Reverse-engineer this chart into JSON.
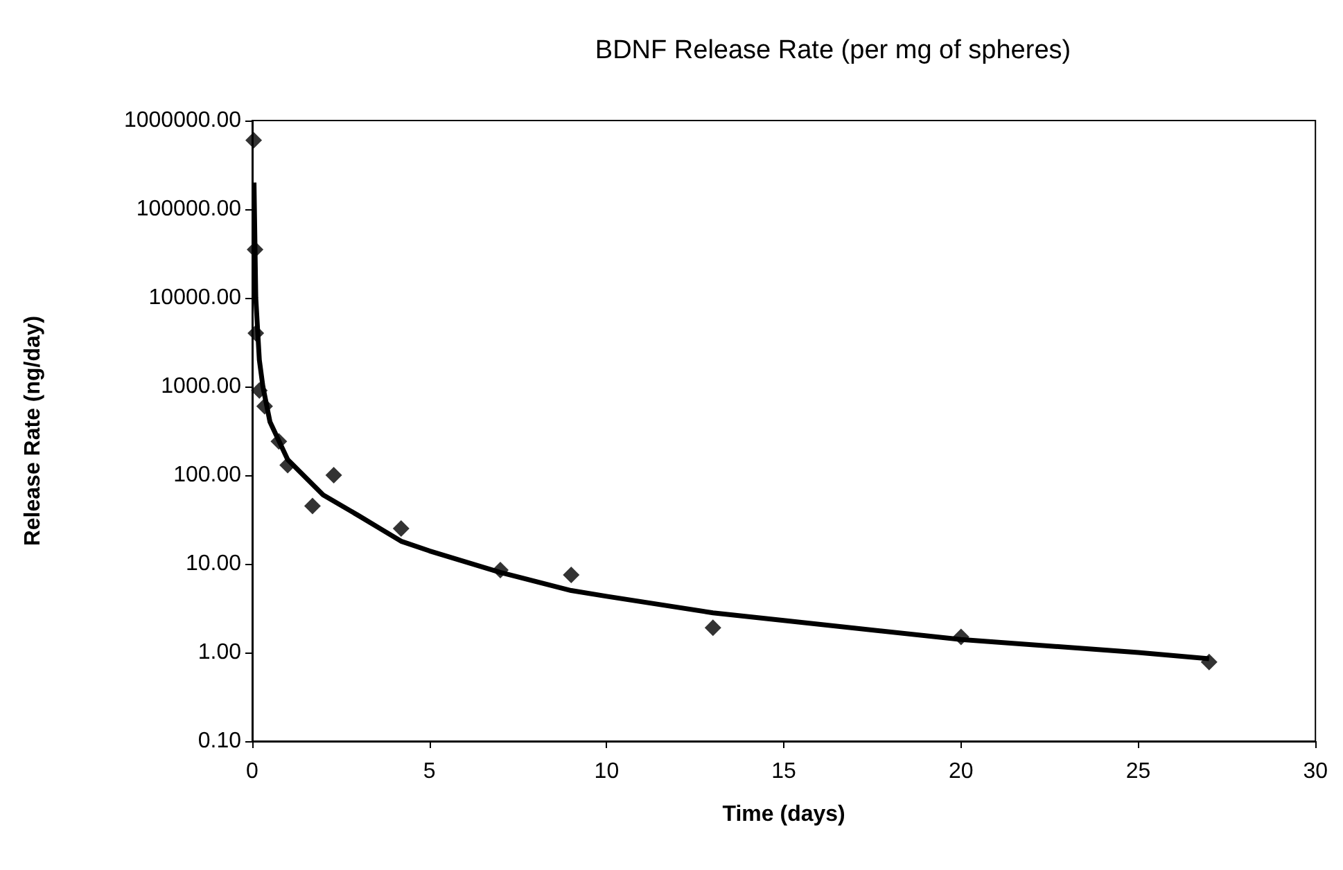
{
  "chart_data": {
    "type": "scatter",
    "title": "BDNF Release Rate (per mg of spheres)",
    "xlabel": "Time (days)",
    "ylabel": "Release Rate (ng/day)",
    "log": "y",
    "grid": false,
    "marker": "diamond",
    "xlim": [
      0,
      30
    ],
    "xticks": [
      0,
      5,
      10,
      15,
      20,
      25,
      30
    ],
    "ylim": [
      0.1,
      1000000
    ],
    "yticks": [
      {
        "value": 0.1,
        "label": "0.10"
      },
      {
        "value": 1,
        "label": "1.00"
      },
      {
        "value": 10,
        "label": "10.00"
      },
      {
        "value": 100,
        "label": "100.00"
      },
      {
        "value": 1000,
        "label": "1000.00"
      },
      {
        "value": 10000,
        "label": "10000.00"
      },
      {
        "value": 100000,
        "label": "100000.00"
      },
      {
        "value": 1000000,
        "label": "1000000.00"
      }
    ],
    "series": [
      {
        "type": "scatter",
        "color": "#000000",
        "x": [
          0.04,
          0.08,
          0.1,
          0.2,
          0.35,
          0.75,
          1.0,
          1.7,
          2.3,
          4.2,
          7,
          9,
          13,
          20,
          27
        ],
        "values": [
          600000,
          35000,
          4000,
          900,
          600,
          240,
          130,
          45,
          100,
          25,
          8.5,
          7.5,
          1.9,
          1.5,
          0.78
        ]
      },
      {
        "type": "line",
        "color": "#000000",
        "marker": "none",
        "x": [
          0.05,
          0.1,
          0.2,
          0.3,
          0.5,
          1,
          2,
          3,
          4.2,
          5,
          7,
          9,
          10,
          13,
          15,
          20,
          25,
          27
        ],
        "values": [
          200000,
          10000,
          2000,
          1000,
          400,
          150,
          60,
          35,
          18,
          14,
          8,
          5,
          4.3,
          2.8,
          2.3,
          1.4,
          1.0,
          0.85
        ]
      }
    ]
  }
}
